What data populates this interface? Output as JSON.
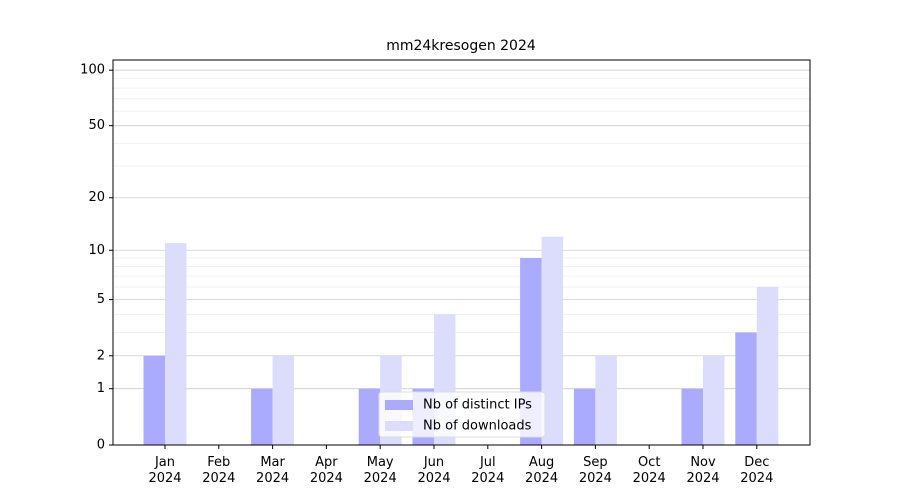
{
  "chart_data": {
    "type": "bar",
    "title": "mm24kresogen 2024",
    "scale": "log1p",
    "categories": [
      "Jan\n2024",
      "Feb\n2024",
      "Mar\n2024",
      "Apr\n2024",
      "May\n2024",
      "Jun\n2024",
      "Jul\n2024",
      "Aug\n2024",
      "Sep\n2024",
      "Oct\n2024",
      "Nov\n2024",
      "Dec\n2024"
    ],
    "series": [
      {
        "name": "Nb of distinct IPs",
        "color": "#aaaaff",
        "values": [
          2,
          0,
          1,
          0,
          1,
          1,
          0,
          9,
          1,
          0,
          1,
          3
        ]
      },
      {
        "name": "Nb of downloads",
        "color": "#dcdcfc",
        "values": [
          11,
          0,
          2,
          0,
          2,
          4,
          0,
          12,
          2,
          0,
          2,
          6
        ]
      }
    ],
    "ylim": [
      0,
      113.5
    ],
    "yticks": [
      0,
      1,
      2,
      5,
      10,
      20,
      50,
      100
    ],
    "minor_yticks": [
      3,
      4,
      6,
      7,
      8,
      9,
      30,
      40,
      60,
      70,
      80,
      90
    ],
    "grid": true,
    "legend": "lower center"
  }
}
